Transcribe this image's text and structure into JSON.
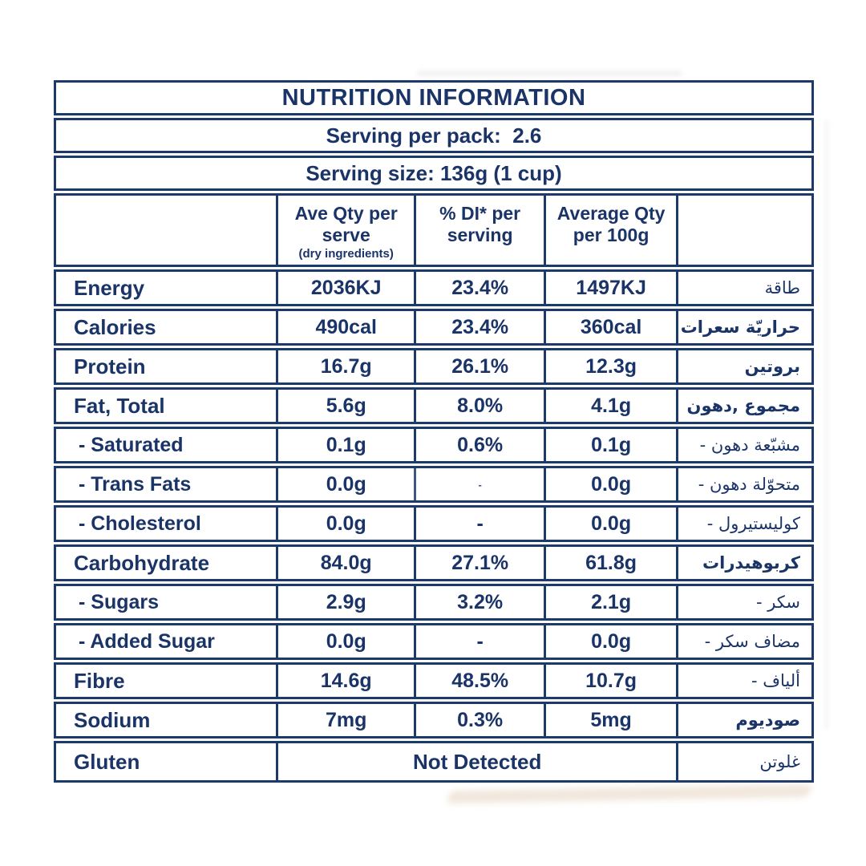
{
  "colors": {
    "navy": "#1d3a6d",
    "background": "#ffffff"
  },
  "table": {
    "title": "NUTRITION INFORMATION",
    "serving_per_pack": "Serving per pack:  2.6",
    "serving_size": "Serving size: 136g (1 cup)",
    "columns": {
      "col_serve": "Ave Qty per serve",
      "col_serve_note": "(dry ingredients)",
      "col_di": "% DI* per serving",
      "col_100g": "Average Qty per 100g"
    },
    "rows": [
      {
        "label": "Energy",
        "serve": "2036KJ",
        "di": "23.4%",
        "per100": "1497KJ",
        "ar": "طاقة"
      },
      {
        "label": "Calories",
        "serve": "490cal",
        "di": "23.4%",
        "per100": "360cal",
        "ar": "سعرات‎ حراريّة"
      },
      {
        "label": "Protein",
        "serve": "16.7g",
        "di": "26.1%",
        "per100": "12.3g",
        "ar": "بروتين"
      },
      {
        "label": "Fat, Total",
        "serve": "5.6g",
        "di": "8.0%",
        "per100": "4.1g",
        "ar": "دهون,‎ مجموع"
      },
      {
        "label": "- Saturated",
        "serve": "0.1g",
        "di": "0.6%",
        "per100": "0.1g",
        "ar": "- دهون‎ مشبّعة"
      },
      {
        "label": "- Trans Fats",
        "serve": "0.0g",
        "di": "-",
        "per100": "0.0g",
        "ar": "- دهون‎ متحوّلة"
      },
      {
        "label": "- Cholesterol",
        "serve": "0.0g",
        "di": "-",
        "per100": "0.0g",
        "ar": "- كوليستيرول"
      },
      {
        "label": "Carbohydrate",
        "serve": "84.0g",
        "di": "27.1%",
        "per100": "61.8g",
        "ar": "كربوهيدرات"
      },
      {
        "label": "- Sugars",
        "serve": "2.9g",
        "di": "3.2%",
        "per100": "2.1g",
        "ar": "- سكر"
      },
      {
        "label": "- Added Sugar",
        "serve": "0.0g",
        "di": "-",
        "per100": "0.0g",
        "ar": "- سكر‎ مضاف"
      },
      {
        "label": "Fibre",
        "serve": "14.6g",
        "di": "48.5%",
        "per100": "10.7g",
        "ar": "- ألياف"
      },
      {
        "label": "Sodium",
        "serve": "7mg",
        "di": "0.3%",
        "per100": "5mg",
        "ar": "صوديوم"
      }
    ],
    "gluten": {
      "label": "Gluten",
      "value": "Not Detected",
      "ar": "غلوتن"
    }
  }
}
